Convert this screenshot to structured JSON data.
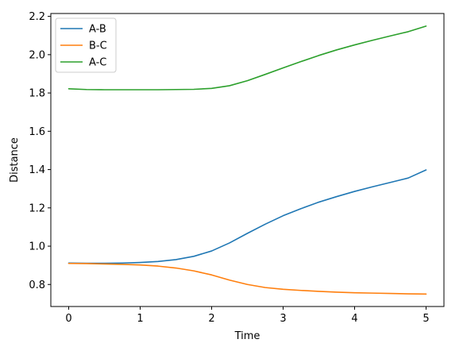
{
  "chart_data": {
    "type": "line",
    "title": "",
    "xlabel": "Time",
    "ylabel": "Distance",
    "xlim": [
      -0.25,
      5.25
    ],
    "ylim": [
      0.685,
      2.215
    ],
    "xticks": [
      0,
      1,
      2,
      3,
      4,
      5
    ],
    "xtick_labels": [
      "0",
      "1",
      "2",
      "3",
      "4",
      "5"
    ],
    "yticks": [
      0.8,
      1.0,
      1.2,
      1.4,
      1.6,
      1.8,
      2.0,
      2.2
    ],
    "ytick_labels": [
      "0.8",
      "1.0",
      "1.2",
      "1.4",
      "1.6",
      "1.8",
      "2.0",
      "2.2"
    ],
    "grid": false,
    "legend_position": "top-left",
    "x": [
      0,
      0.25,
      0.5,
      0.75,
      1.0,
      1.25,
      1.5,
      1.75,
      2.0,
      2.25,
      2.5,
      2.75,
      3.0,
      3.25,
      3.5,
      3.75,
      4.0,
      4.25,
      4.5,
      4.75,
      5.0
    ],
    "series": [
      {
        "name": "A-B",
        "color": "#1f77b4",
        "values": [
          0.912,
          0.911,
          0.911,
          0.912,
          0.915,
          0.92,
          0.93,
          0.947,
          0.975,
          1.017,
          1.067,
          1.115,
          1.159,
          1.196,
          1.23,
          1.259,
          1.286,
          1.31,
          1.333,
          1.356,
          1.398
        ]
      },
      {
        "name": "B-C",
        "color": "#ff7f0e",
        "values": [
          0.91,
          0.909,
          0.907,
          0.905,
          0.902,
          0.896,
          0.886,
          0.871,
          0.85,
          0.823,
          0.8,
          0.784,
          0.775,
          0.769,
          0.764,
          0.76,
          0.757,
          0.755,
          0.753,
          0.751,
          0.75
        ]
      },
      {
        "name": "A-C",
        "color": "#2ca02c",
        "values": [
          1.822,
          1.818,
          1.817,
          1.817,
          1.817,
          1.817,
          1.818,
          1.819,
          1.824,
          1.838,
          1.864,
          1.897,
          1.931,
          1.964,
          1.996,
          2.025,
          2.051,
          2.075,
          2.098,
          2.12,
          2.149
        ]
      }
    ]
  }
}
